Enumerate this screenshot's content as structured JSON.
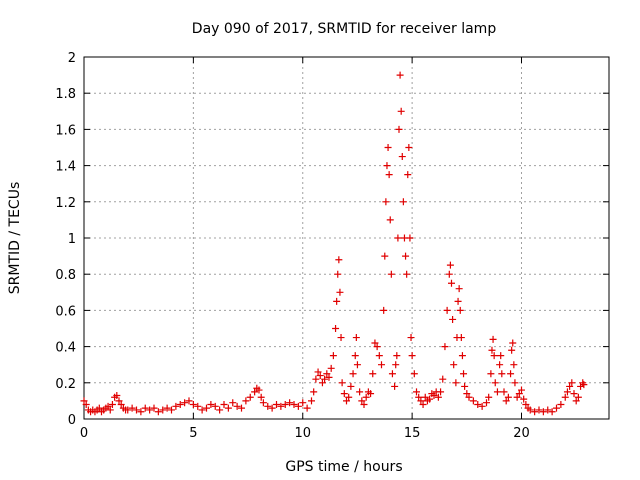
{
  "chart_data": {
    "type": "scatter",
    "title": "Day 090 of 2017, SRMTID for receiver lamp",
    "xlabel": "GPS time / hours",
    "ylabel": "SRMTID / TECUs",
    "xlim": [
      0,
      24
    ],
    "ylim": [
      0,
      2
    ],
    "xticks": [
      0,
      5,
      10,
      15,
      20
    ],
    "yticks": [
      0,
      0.2,
      0.4,
      0.6,
      0.8,
      1,
      1.2,
      1.4,
      1.6,
      1.8,
      2
    ],
    "grid": true,
    "marker": "+",
    "color": "#e00000",
    "series": [
      {
        "name": "lamp",
        "points": [
          [
            0.0,
            0.1
          ],
          [
            0.1,
            0.08
          ],
          [
            0.2,
            0.05
          ],
          [
            0.3,
            0.04
          ],
          [
            0.4,
            0.05
          ],
          [
            0.5,
            0.04
          ],
          [
            0.6,
            0.05
          ],
          [
            0.7,
            0.06
          ],
          [
            0.8,
            0.04
          ],
          [
            0.9,
            0.05
          ],
          [
            1.0,
            0.06
          ],
          [
            1.1,
            0.07
          ],
          [
            1.2,
            0.05
          ],
          [
            1.3,
            0.08
          ],
          [
            1.4,
            0.12
          ],
          [
            1.5,
            0.13
          ],
          [
            1.6,
            0.1
          ],
          [
            1.7,
            0.08
          ],
          [
            1.8,
            0.06
          ],
          [
            1.9,
            0.05
          ],
          [
            2.0,
            0.05
          ],
          [
            2.2,
            0.06
          ],
          [
            2.4,
            0.05
          ],
          [
            2.6,
            0.04
          ],
          [
            2.8,
            0.06
          ],
          [
            3.0,
            0.05
          ],
          [
            3.2,
            0.06
          ],
          [
            3.4,
            0.04
          ],
          [
            3.6,
            0.05
          ],
          [
            3.8,
            0.06
          ],
          [
            4.0,
            0.05
          ],
          [
            4.2,
            0.07
          ],
          [
            4.4,
            0.08
          ],
          [
            4.6,
            0.09
          ],
          [
            4.8,
            0.1
          ],
          [
            5.0,
            0.08
          ],
          [
            5.2,
            0.07
          ],
          [
            5.4,
            0.05
          ],
          [
            5.6,
            0.06
          ],
          [
            5.8,
            0.08
          ],
          [
            6.0,
            0.07
          ],
          [
            6.2,
            0.05
          ],
          [
            6.4,
            0.08
          ],
          [
            6.6,
            0.06
          ],
          [
            6.8,
            0.09
          ],
          [
            7.0,
            0.07
          ],
          [
            7.2,
            0.06
          ],
          [
            7.4,
            0.1
          ],
          [
            7.6,
            0.12
          ],
          [
            7.8,
            0.15
          ],
          [
            7.9,
            0.17
          ],
          [
            8.0,
            0.16
          ],
          [
            8.1,
            0.12
          ],
          [
            8.2,
            0.09
          ],
          [
            8.4,
            0.07
          ],
          [
            8.6,
            0.06
          ],
          [
            8.8,
            0.08
          ],
          [
            9.0,
            0.07
          ],
          [
            9.2,
            0.08
          ],
          [
            9.4,
            0.09
          ],
          [
            9.6,
            0.08
          ],
          [
            9.8,
            0.07
          ],
          [
            10.0,
            0.09
          ],
          [
            10.2,
            0.06
          ],
          [
            10.4,
            0.1
          ],
          [
            10.5,
            0.15
          ],
          [
            10.6,
            0.22
          ],
          [
            10.7,
            0.26
          ],
          [
            10.8,
            0.24
          ],
          [
            10.9,
            0.2
          ],
          [
            11.0,
            0.22
          ],
          [
            11.1,
            0.25
          ],
          [
            11.2,
            0.23
          ],
          [
            11.3,
            0.28
          ],
          [
            11.4,
            0.35
          ],
          [
            11.5,
            0.5
          ],
          [
            11.55,
            0.65
          ],
          [
            11.6,
            0.8
          ],
          [
            11.65,
            0.88
          ],
          [
            11.7,
            0.7
          ],
          [
            11.75,
            0.45
          ],
          [
            11.8,
            0.2
          ],
          [
            11.9,
            0.14
          ],
          [
            12.0,
            0.1
          ],
          [
            12.1,
            0.12
          ],
          [
            12.2,
            0.18
          ],
          [
            12.3,
            0.25
          ],
          [
            12.4,
            0.35
          ],
          [
            12.45,
            0.45
          ],
          [
            12.5,
            0.3
          ],
          [
            12.6,
            0.15
          ],
          [
            12.7,
            0.1
          ],
          [
            12.8,
            0.08
          ],
          [
            12.9,
            0.12
          ],
          [
            13.0,
            0.15
          ],
          [
            13.1,
            0.14
          ],
          [
            13.2,
            0.25
          ],
          [
            13.3,
            0.42
          ],
          [
            13.4,
            0.4
          ],
          [
            13.5,
            0.35
          ],
          [
            13.6,
            0.3
          ],
          [
            13.7,
            0.6
          ],
          [
            13.75,
            0.9
          ],
          [
            13.8,
            1.2
          ],
          [
            13.85,
            1.4
          ],
          [
            13.9,
            1.5
          ],
          [
            13.95,
            1.35
          ],
          [
            14.0,
            1.1
          ],
          [
            14.05,
            0.8
          ],
          [
            14.1,
            0.25
          ],
          [
            14.2,
            0.18
          ],
          [
            14.25,
            0.3
          ],
          [
            14.3,
            0.35
          ],
          [
            14.35,
            1.0
          ],
          [
            14.4,
            1.6
          ],
          [
            14.45,
            1.9
          ],
          [
            14.5,
            1.7
          ],
          [
            14.55,
            1.45
          ],
          [
            14.6,
            1.2
          ],
          [
            14.65,
            1.0
          ],
          [
            14.7,
            0.9
          ],
          [
            14.75,
            0.8
          ],
          [
            14.8,
            1.35
          ],
          [
            14.85,
            1.5
          ],
          [
            14.9,
            1.0
          ],
          [
            14.95,
            0.45
          ],
          [
            15.0,
            0.35
          ],
          [
            15.1,
            0.25
          ],
          [
            15.2,
            0.15
          ],
          [
            15.3,
            0.12
          ],
          [
            15.4,
            0.1
          ],
          [
            15.5,
            0.08
          ],
          [
            15.6,
            0.12
          ],
          [
            15.7,
            0.1
          ],
          [
            15.8,
            0.11
          ],
          [
            15.9,
            0.14
          ],
          [
            16.0,
            0.13
          ],
          [
            16.1,
            0.15
          ],
          [
            16.2,
            0.12
          ],
          [
            16.3,
            0.15
          ],
          [
            16.4,
            0.22
          ],
          [
            16.5,
            0.4
          ],
          [
            16.6,
            0.6
          ],
          [
            16.7,
            0.8
          ],
          [
            16.75,
            0.85
          ],
          [
            16.8,
            0.75
          ],
          [
            16.85,
            0.55
          ],
          [
            16.9,
            0.3
          ],
          [
            17.0,
            0.2
          ],
          [
            17.05,
            0.45
          ],
          [
            17.1,
            0.65
          ],
          [
            17.15,
            0.72
          ],
          [
            17.2,
            0.6
          ],
          [
            17.25,
            0.45
          ],
          [
            17.3,
            0.35
          ],
          [
            17.35,
            0.25
          ],
          [
            17.4,
            0.18
          ],
          [
            17.5,
            0.14
          ],
          [
            17.6,
            0.12
          ],
          [
            17.8,
            0.1
          ],
          [
            18.0,
            0.08
          ],
          [
            18.2,
            0.07
          ],
          [
            18.4,
            0.09
          ],
          [
            18.5,
            0.12
          ],
          [
            18.6,
            0.25
          ],
          [
            18.65,
            0.38
          ],
          [
            18.7,
            0.44
          ],
          [
            18.75,
            0.35
          ],
          [
            18.8,
            0.2
          ],
          [
            18.9,
            0.15
          ],
          [
            19.0,
            0.3
          ],
          [
            19.05,
            0.35
          ],
          [
            19.1,
            0.25
          ],
          [
            19.2,
            0.15
          ],
          [
            19.3,
            0.1
          ],
          [
            19.4,
            0.12
          ],
          [
            19.5,
            0.25
          ],
          [
            19.55,
            0.38
          ],
          [
            19.6,
            0.42
          ],
          [
            19.65,
            0.3
          ],
          [
            19.7,
            0.2
          ],
          [
            19.8,
            0.12
          ],
          [
            19.9,
            0.14
          ],
          [
            20.0,
            0.16
          ],
          [
            20.1,
            0.11
          ],
          [
            20.2,
            0.08
          ],
          [
            20.3,
            0.06
          ],
          [
            20.4,
            0.05
          ],
          [
            20.6,
            0.04
          ],
          [
            20.8,
            0.05
          ],
          [
            21.0,
            0.04
          ],
          [
            21.2,
            0.05
          ],
          [
            21.4,
            0.04
          ],
          [
            21.6,
            0.06
          ],
          [
            21.8,
            0.08
          ],
          [
            22.0,
            0.12
          ],
          [
            22.1,
            0.15
          ],
          [
            22.2,
            0.18
          ],
          [
            22.3,
            0.2
          ],
          [
            22.4,
            0.14
          ],
          [
            22.5,
            0.1
          ],
          [
            22.6,
            0.12
          ],
          [
            22.7,
            0.18
          ],
          [
            22.8,
            0.2
          ],
          [
            22.85,
            0.19
          ]
        ]
      }
    ]
  }
}
